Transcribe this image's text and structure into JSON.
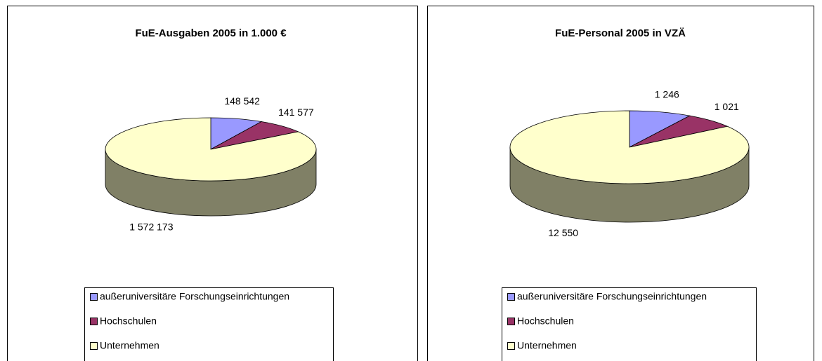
{
  "chart_data": [
    {
      "type": "pie",
      "title": "FuE-Ausgaben 2005 in 1.000 €",
      "categories": [
        "außeruniversitäre Forschungseinrichtungen",
        "Hochschulen",
        "Unternehmen"
      ],
      "values": [
        148542,
        141577,
        1572173
      ],
      "value_labels": [
        "148 542",
        "141 577",
        "1 572 173"
      ],
      "colors": [
        "#9999ff",
        "#993366",
        "#ffffcc"
      ]
    },
    {
      "type": "pie",
      "title": "FuE-Personal 2005 in VZÄ",
      "categories": [
        "außeruniversitäre Forschungseinrichtungen",
        "Hochschulen",
        "Unternehmen"
      ],
      "values": [
        1246,
        1021,
        12550
      ],
      "value_labels": [
        "1 246",
        "1 021",
        "12 550"
      ],
      "colors": [
        "#9999ff",
        "#993366",
        "#ffffcc"
      ]
    }
  ]
}
